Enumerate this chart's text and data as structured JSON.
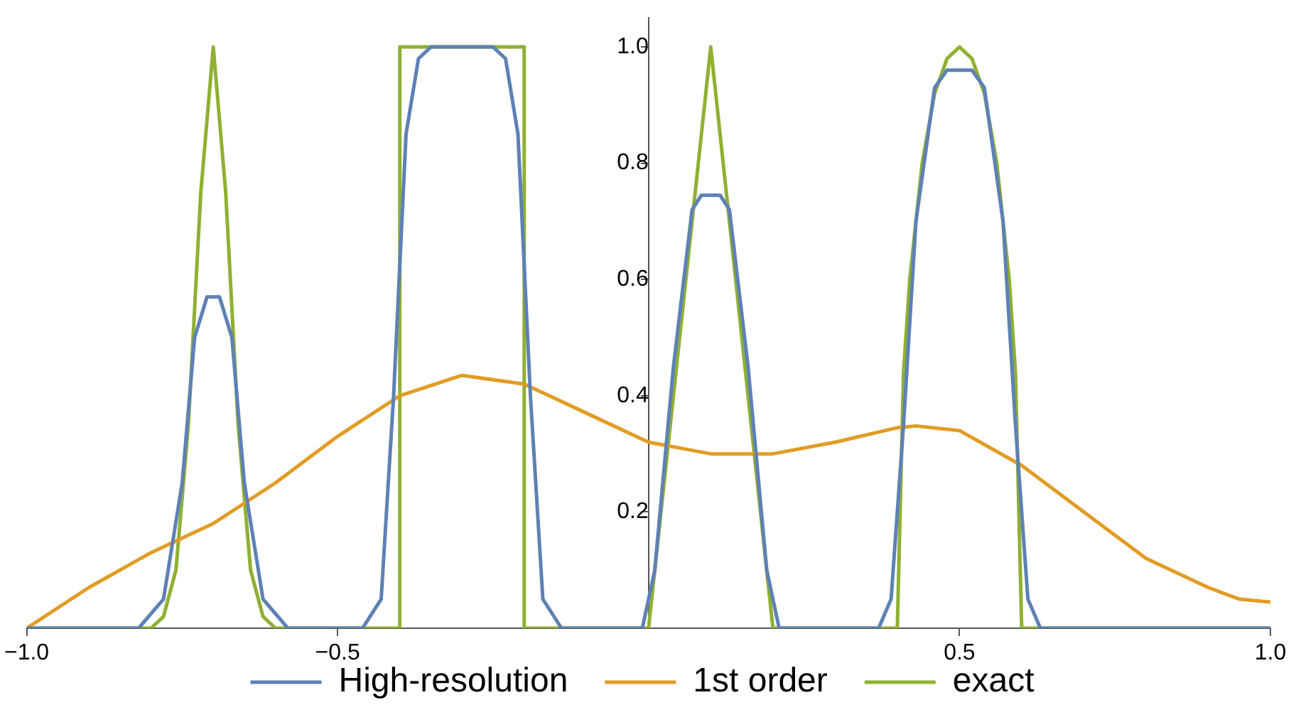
{
  "chart_data": {
    "type": "line",
    "xlim": [
      -1,
      1
    ],
    "ylim": [
      0,
      1.05
    ],
    "xticks": [
      {
        "value": -1,
        "label": "−1.0"
      },
      {
        "value": -0.5,
        "label": "−0.5"
      },
      {
        "value": 0.5,
        "label": "0.5"
      },
      {
        "value": 1,
        "label": "1.0"
      }
    ],
    "yticks": [
      0.2,
      0.4,
      0.6,
      0.8,
      {
        "value": 1,
        "label": "1.0"
      }
    ],
    "grid": false,
    "legend": "bottom",
    "marker": "none",
    "line_style": "solid",
    "series": [
      {
        "name": "High-resolution",
        "color": "#5e81b5",
        "x": [
          -1,
          -0.82,
          -0.78,
          -0.75,
          -0.73,
          -0.71,
          -0.69,
          -0.67,
          -0.65,
          -0.62,
          -0.58,
          -0.46,
          -0.43,
          -0.41,
          -0.39,
          -0.37,
          -0.35,
          -0.25,
          -0.23,
          -0.21,
          -0.19,
          -0.17,
          -0.14,
          -0.01,
          0.01,
          0.04,
          0.07,
          0.085,
          0.115,
          0.13,
          0.16,
          0.19,
          0.21,
          0.37,
          0.39,
          0.41,
          0.43,
          0.46,
          0.48,
          0.52,
          0.54,
          0.57,
          0.59,
          0.61,
          0.63,
          1
        ],
        "values": [
          0,
          0,
          0.05,
          0.25,
          0.5,
          0.57,
          0.57,
          0.5,
          0.25,
          0.05,
          0,
          0,
          0.05,
          0.4,
          0.85,
          0.98,
          1,
          1,
          0.98,
          0.85,
          0.4,
          0.05,
          0,
          0,
          0.1,
          0.45,
          0.72,
          0.745,
          0.745,
          0.72,
          0.45,
          0.1,
          0,
          0,
          0.05,
          0.35,
          0.7,
          0.93,
          0.96,
          0.96,
          0.93,
          0.7,
          0.35,
          0.05,
          0,
          0
        ]
      },
      {
        "name": "1st order",
        "color": "#e19c24",
        "x": [
          -1,
          -0.9,
          -0.8,
          -0.7,
          -0.6,
          -0.5,
          -0.4,
          -0.3,
          -0.2,
          -0.1,
          0,
          0.1,
          0.2,
          0.3,
          0.4,
          0.43,
          0.5,
          0.6,
          0.7,
          0.8,
          0.9,
          0.95,
          1
        ],
        "values": [
          0,
          0.07,
          0.13,
          0.18,
          0.25,
          0.33,
          0.4,
          0.435,
          0.42,
          0.37,
          0.32,
          0.3,
          0.3,
          0.32,
          0.345,
          0.348,
          0.34,
          0.28,
          0.2,
          0.12,
          0.07,
          0.05,
          0.045
        ]
      },
      {
        "name": "exact",
        "color": "#8fb032",
        "x": [
          -1,
          -0.8,
          -0.78,
          -0.76,
          -0.74,
          -0.72,
          -0.7,
          -0.68,
          -0.66,
          -0.64,
          -0.62,
          -0.6,
          -0.4,
          -0.4,
          -0.2,
          -0.2,
          0,
          0.1,
          0.2,
          0.4,
          0.41,
          0.42,
          0.44,
          0.46,
          0.48,
          0.5,
          0.52,
          0.54,
          0.56,
          0.58,
          0.59,
          0.6,
          1
        ],
        "values": [
          0,
          0,
          0.02,
          0.1,
          0.35,
          0.75,
          1,
          0.75,
          0.35,
          0.1,
          0.02,
          0,
          0,
          1,
          1,
          0,
          0,
          1,
          0,
          0,
          0.44,
          0.6,
          0.8,
          0.92,
          0.98,
          1,
          0.98,
          0.92,
          0.8,
          0.6,
          0.44,
          0,
          0
        ]
      }
    ]
  }
}
